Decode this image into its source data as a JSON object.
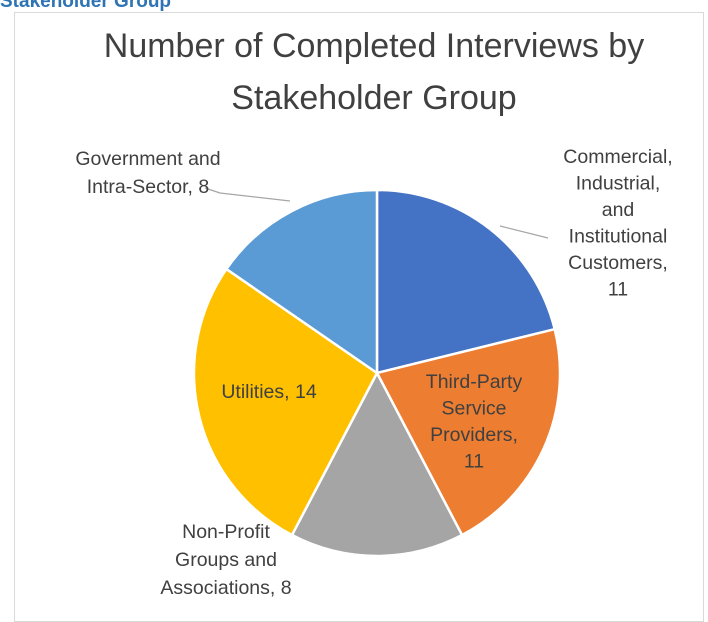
{
  "header": {
    "text": "Stakeholder Group"
  },
  "chart_data": {
    "type": "pie",
    "title": "Number of Completed Interviews by Stakeholder Group",
    "title_lines": [
      "Number of Completed Interviews by",
      "Stakeholder Group"
    ],
    "categories": [
      "Commercial, Industrial, and Institutional Customers",
      "Third-Party Service Providers",
      "Non-Profit Groups and Associations",
      "Utilities",
      "Government and Intra-Sector"
    ],
    "values": [
      11,
      11,
      8,
      14,
      8
    ],
    "colors": [
      "#4472c4",
      "#ed7d31",
      "#a5a5a5",
      "#ffc000",
      "#5b9bd5"
    ],
    "data_labels": [
      [
        "Commercial,",
        "Industrial,",
        "and",
        "Institutional",
        "Customers,",
        "11"
      ],
      [
        "Third-Party",
        "Service",
        "Providers,",
        "11"
      ],
      [
        "Non-Profit",
        "Groups and",
        "Associations, 8"
      ],
      [
        "Utilities, 14"
      ],
      [
        "Government and",
        "Intra-Sector, 8"
      ]
    ],
    "start_angle_deg": 0,
    "direction": "clockwise",
    "legend": "none"
  }
}
